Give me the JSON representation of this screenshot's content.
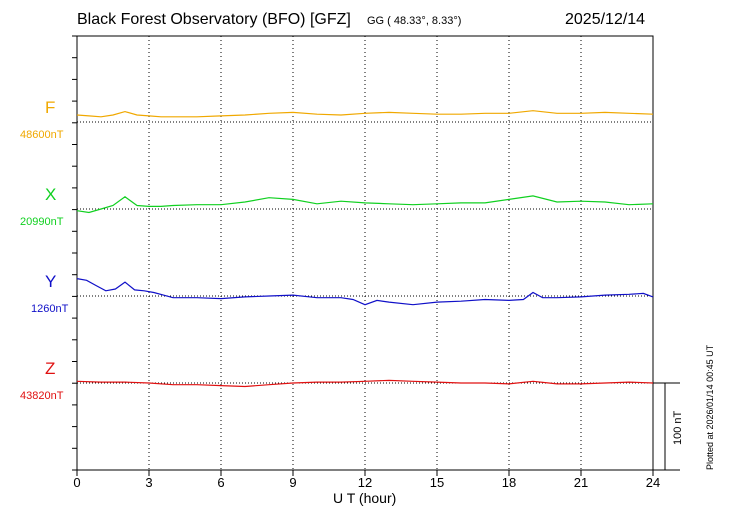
{
  "chart_data": {
    "type": "line",
    "title": "Black Forest Observatory (BFO)  [GFZ]",
    "coords": "GG ( 48.33°,   8.33°)",
    "date": "2025/12/14",
    "xlabel": "U T (hour)",
    "xlim": [
      0,
      24
    ],
    "xticks": [
      0,
      3,
      6,
      9,
      12,
      15,
      18,
      21,
      24
    ],
    "grid": true,
    "scale_bar": "100 nT",
    "plotted_note": "Plotted at 2026/01/14 00:45 UT",
    "series": [
      {
        "name": "F",
        "base_label": "48600nT",
        "baseline": 48600,
        "color": "#f0a800",
        "x": [
          0,
          0.5,
          1,
          1.5,
          2,
          2.5,
          3,
          3.5,
          4,
          5,
          6,
          7,
          8,
          9,
          10,
          11,
          12,
          13,
          14,
          15,
          16,
          17,
          18,
          19,
          20,
          21,
          22,
          23,
          24
        ],
        "y": [
          48608,
          48607,
          48606,
          48608,
          48612,
          48608,
          48607,
          48606,
          48606,
          48606,
          48607,
          48608,
          48610,
          48611,
          48609,
          48608,
          48610,
          48611,
          48610,
          48609,
          48609,
          48610,
          48610,
          48613,
          48610,
          48610,
          48611,
          48610,
          48609
        ]
      },
      {
        "name": "X",
        "base_label": "20990nT",
        "baseline": 20990,
        "color": "#10d020",
        "x": [
          0,
          0.5,
          1,
          1.5,
          2,
          2.5,
          3,
          3.5,
          4,
          5,
          6,
          7,
          8,
          9,
          10,
          11,
          12,
          13,
          14,
          15,
          16,
          17,
          18,
          19,
          20,
          21,
          22,
          23,
          24
        ],
        "y": [
          20988,
          20986,
          20990,
          20994,
          21004,
          20994,
          20993,
          20993,
          20994,
          20995,
          20995,
          20998,
          21003,
          21001,
          20996,
          20999,
          20997,
          20996,
          20995,
          20996,
          20997,
          20997,
          21001,
          21005,
          20998,
          20999,
          20998,
          20995,
          20996
        ]
      },
      {
        "name": "Y",
        "base_label": "1260nT",
        "baseline": 1260,
        "color": "#1010c8",
        "x": [
          0,
          0.4,
          0.8,
          1.2,
          1.6,
          2,
          2.4,
          2.8,
          3.2,
          3.6,
          4,
          5,
          6,
          7,
          8,
          9,
          10,
          11,
          11.5,
          12,
          12.5,
          13,
          14,
          15,
          16,
          17,
          18,
          18.6,
          19,
          19.4,
          20,
          21,
          22,
          23,
          23.6,
          24
        ],
        "y": [
          1280,
          1278,
          1272,
          1266,
          1268,
          1276,
          1267,
          1266,
          1264,
          1261,
          1258,
          1258,
          1257,
          1259,
          1260,
          1261,
          1258,
          1258,
          1256,
          1250,
          1255,
          1253,
          1250,
          1253,
          1254,
          1256,
          1255,
          1256,
          1264,
          1258,
          1258,
          1259,
          1261,
          1262,
          1263,
          1259
        ]
      },
      {
        "name": "Z",
        "base_label": "43820nT",
        "baseline": 43820,
        "color": "#e01010",
        "x": [
          0,
          1,
          2,
          3,
          4,
          5,
          6,
          7,
          8,
          9,
          10,
          11,
          12,
          13,
          14,
          15,
          16,
          17,
          18,
          19,
          20,
          21,
          22,
          23,
          24
        ],
        "y": [
          43822,
          43821,
          43821,
          43820,
          43818,
          43818,
          43817,
          43816,
          43818,
          43820,
          43821,
          43821,
          43822,
          43823,
          43822,
          43821,
          43820,
          43820,
          43819,
          43822,
          43819,
          43819,
          43820,
          43821,
          43820
        ]
      }
    ]
  }
}
